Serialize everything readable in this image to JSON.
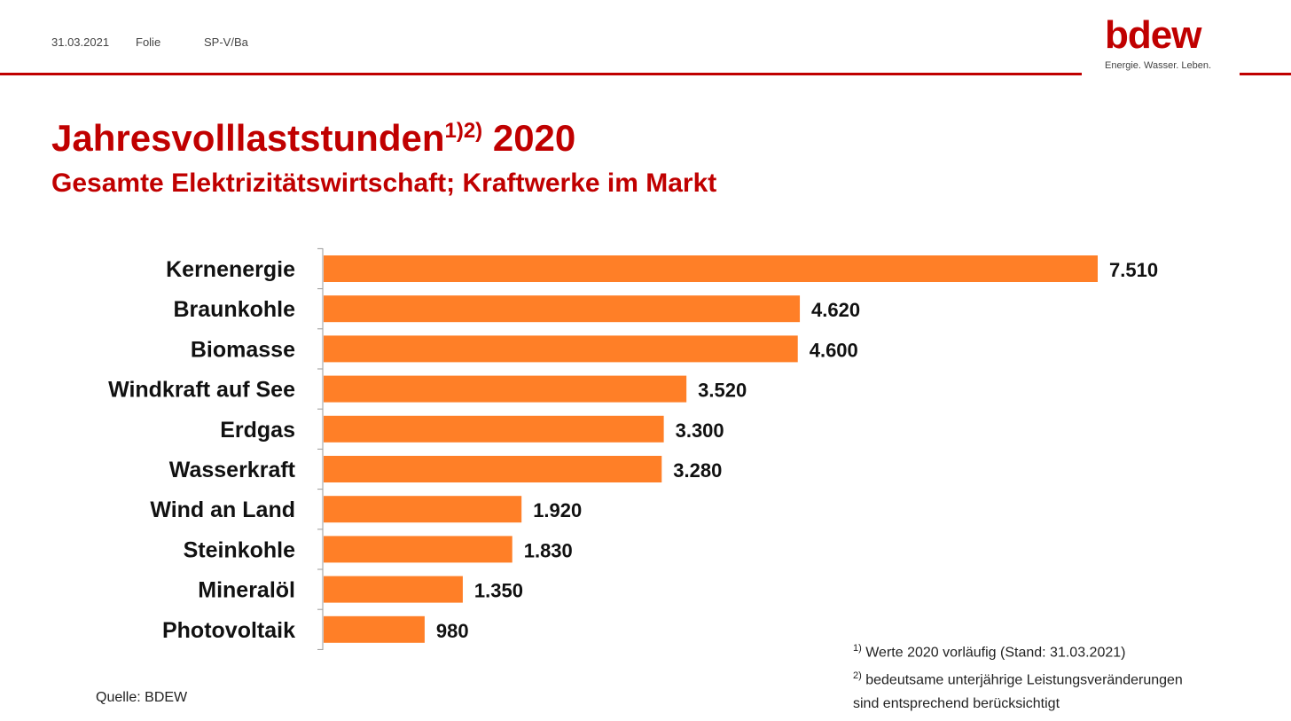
{
  "header": {
    "date": "31.03.2021",
    "slide_label": "Folie",
    "author_code": "SP-V/Ba"
  },
  "logo": {
    "name": "bdew",
    "tagline": "Energie. Wasser. Leben."
  },
  "title": {
    "text": "Jahresvolllaststunden",
    "superscript": "1)2)",
    "year": "2020"
  },
  "subtitle": "Gesamte Elektrizitätswirtschaft; Kraftwerke im Markt",
  "source": "Quelle: BDEW",
  "footnotes": [
    {
      "marker": "1)",
      "text": "Werte 2020 vorläufig (Stand: 31.03.2021)"
    },
    {
      "marker": "2)",
      "text": "bedeutsame unterjährige Leistungsveränderungen"
    },
    {
      "marker": "",
      "text": "sind entsprechend berücksichtigt"
    }
  ],
  "colors": {
    "accent": "#c00000",
    "bar": "#ff7f27"
  },
  "chart_data": {
    "type": "bar",
    "orientation": "horizontal",
    "categories": [
      "Kernenergie",
      "Braunkohle",
      "Biomasse",
      "Windkraft auf See",
      "Erdgas",
      "Wasserkraft",
      "Wind an Land",
      "Steinkohle",
      "Mineralöl",
      "Photovoltaik"
    ],
    "values": [
      7510,
      4620,
      4600,
      3520,
      3300,
      3280,
      1920,
      1830,
      1350,
      980
    ],
    "value_labels": [
      "7.510",
      "4.620",
      "4.600",
      "3.520",
      "3.300",
      "3.280",
      "1.920",
      "1.830",
      "1.350",
      "980"
    ],
    "xlim": [
      0,
      7510
    ],
    "grid": false,
    "legend": "none"
  }
}
